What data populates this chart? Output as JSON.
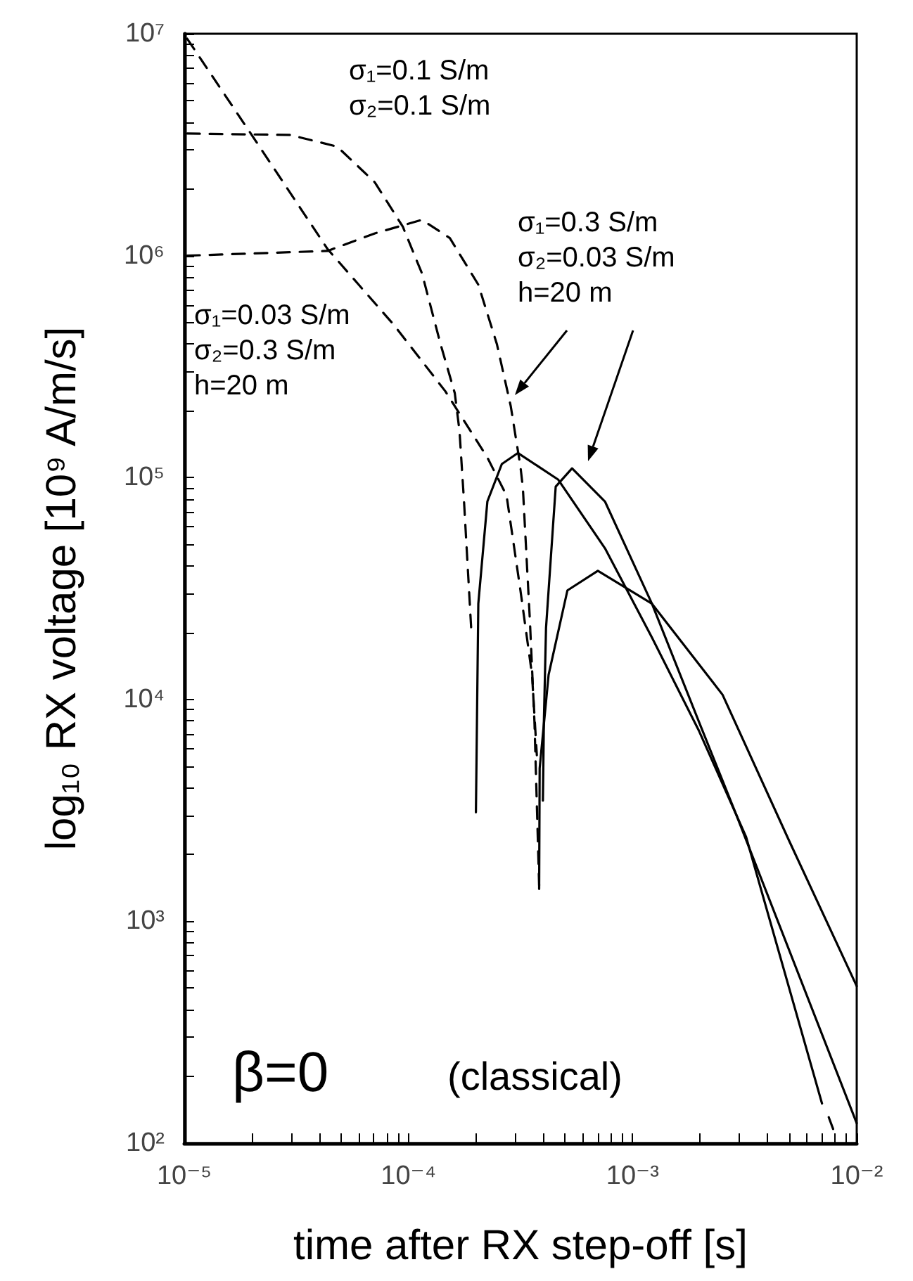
{
  "chart_data": {
    "type": "line",
    "xlabel": "time after RX step-off [s]",
    "ylabel": "log₁₀ RX voltage [10⁹ A/m/s]",
    "log": "xy",
    "grid": false,
    "marker": "none",
    "xlim": [
      1e-05,
      0.01
    ],
    "ylim": [
      100,
      10000000.0
    ],
    "xticks": [
      {
        "value": 1e-05,
        "label": "10⁻⁵"
      },
      {
        "value": 2e-05,
        "label": null
      },
      {
        "value": 3e-05,
        "label": null
      },
      {
        "value": 4e-05,
        "label": null
      },
      {
        "value": 5e-05,
        "label": null
      },
      {
        "value": 6e-05,
        "label": null
      },
      {
        "value": 7e-05,
        "label": null
      },
      {
        "value": 8e-05,
        "label": null
      },
      {
        "value": 9e-05,
        "label": null
      },
      {
        "value": 0.0001,
        "label": "10⁻⁴"
      },
      {
        "value": 0.0002,
        "label": null
      },
      {
        "value": 0.0003,
        "label": null
      },
      {
        "value": 0.0004,
        "label": null
      },
      {
        "value": 0.0005,
        "label": null
      },
      {
        "value": 0.0006,
        "label": null
      },
      {
        "value": 0.0007,
        "label": null
      },
      {
        "value": 0.0008,
        "label": null
      },
      {
        "value": 0.0009,
        "label": null
      },
      {
        "value": 0.001,
        "label": "10⁻³"
      },
      {
        "value": 0.002,
        "label": null
      },
      {
        "value": 0.003,
        "label": null
      },
      {
        "value": 0.004,
        "label": null
      },
      {
        "value": 0.005,
        "label": null
      },
      {
        "value": 0.006,
        "label": null
      },
      {
        "value": 0.007,
        "label": null
      },
      {
        "value": 0.008,
        "label": null
      },
      {
        "value": 0.009,
        "label": null
      },
      {
        "value": 0.01,
        "label": "10⁻²"
      }
    ],
    "yticks": [
      {
        "value": 100,
        "label": "10²"
      },
      {
        "value": 200,
        "label": null
      },
      {
        "value": 300,
        "label": null
      },
      {
        "value": 400,
        "label": null
      },
      {
        "value": 500,
        "label": null
      },
      {
        "value": 600,
        "label": null
      },
      {
        "value": 700,
        "label": null
      },
      {
        "value": 800,
        "label": null
      },
      {
        "value": 900,
        "label": null
      },
      {
        "value": 1000,
        "label": "10³"
      },
      {
        "value": 2000,
        "label": null
      },
      {
        "value": 3000,
        "label": null
      },
      {
        "value": 4000,
        "label": null
      },
      {
        "value": 5000,
        "label": null
      },
      {
        "value": 6000,
        "label": null
      },
      {
        "value": 7000,
        "label": null
      },
      {
        "value": 8000,
        "label": null
      },
      {
        "value": 9000,
        "label": null
      },
      {
        "value": 10000,
        "label": "10⁴"
      },
      {
        "value": 20000,
        "label": null
      },
      {
        "value": 30000,
        "label": null
      },
      {
        "value": 40000,
        "label": null
      },
      {
        "value": 50000,
        "label": null
      },
      {
        "value": 60000,
        "label": null
      },
      {
        "value": 70000,
        "label": null
      },
      {
        "value": 80000,
        "label": null
      },
      {
        "value": 90000,
        "label": null
      },
      {
        "value": 100000,
        "label": "10⁵"
      },
      {
        "value": 200000,
        "label": null
      },
      {
        "value": 300000,
        "label": null
      },
      {
        "value": 400000,
        "label": null
      },
      {
        "value": 500000,
        "label": null
      },
      {
        "value": 600000,
        "label": null
      },
      {
        "value": 700000,
        "label": null
      },
      {
        "value": 800000,
        "label": null
      },
      {
        "value": 900000,
        "label": null
      },
      {
        "value": 1000000,
        "label": "10⁶"
      },
      {
        "value": 2000000,
        "label": null
      },
      {
        "value": 3000000,
        "label": null
      },
      {
        "value": 4000000,
        "label": null
      },
      {
        "value": 5000000,
        "label": null
      },
      {
        "value": 6000000,
        "label": null
      },
      {
        "value": 7000000,
        "label": null
      },
      {
        "value": 8000000,
        "label": null
      },
      {
        "value": 9000000,
        "label": null
      },
      {
        "value": 10000000,
        "label": "10⁷"
      }
    ],
    "series": [
      {
        "color": "#000000",
        "line_style": "dashed",
        "x": [
          1.03e-05,
          2.01e-05,
          4.36e-05,
          8.57e-05,
          0.000146,
          0.000225,
          0.000274,
          0.000316,
          0.000356,
          0.000374
        ],
        "values": [
          9500000.0,
          3470000.0,
          1070000.0,
          490000.0,
          245000.0,
          123000.0,
          83000.0,
          31000.0,
          12900.0,
          5600.0
        ]
      },
      {
        "color": "#000000",
        "line_style": "dashed",
        "x": [
          1.03e-05,
          2.96e-05,
          4.81e-05,
          7.08e-05,
          9.44e-05,
          0.000115,
          0.000139,
          0.000161,
          0.000169,
          0.000177,
          0.000191
        ],
        "values": [
          3550000.0,
          3500000.0,
          3100000.0,
          2140000.0,
          1350000.0,
          830000.0,
          400000.0,
          240000.0,
          162000.0,
          78000.0,
          20000.0
        ]
      },
      {
        "color": "#000000",
        "line_style": "dashed",
        "x": [
          1.03e-05,
          4.36e-05,
          7.08e-05,
          0.000115,
          0.000153,
          0.000205,
          0.000248,
          0.000286,
          0.000316,
          0.000324,
          0.000348,
          0.000365,
          0.000383
        ],
        "values": [
          1000000.0,
          1050000.0,
          1260000.0,
          1450000.0,
          1200000.0,
          740000.0,
          400000.0,
          210000.0,
          112000.0,
          90000.0,
          23000.0,
          7900.0,
          1450.0
        ]
      },
      {
        "color": "#000000",
        "line_style": "solid",
        "x": [
          0.0002,
          0.000205,
          0.000225,
          0.000261,
          0.000308,
          0.000465,
          0.000753,
          0.00122,
          0.00198,
          0.00321,
          0.007
        ],
        "values": [
          3100.0,
          27000.0,
          78000.0,
          115000.0,
          129000.0,
          98000.0,
          48000.0,
          19000.0,
          7200.0,
          2400.0,
          151
        ]
      },
      {
        "color": "#000000",
        "line_style": "solid",
        "x": [
          0.000398,
          0.000402,
          0.000411,
          0.000454,
          0.000537,
          0.000753,
          0.00122,
          0.00198,
          0.00291,
          0.01
        ],
        "values": [
          3500.0,
          7900.0,
          21000.0,
          91000.0,
          110000.0,
          78000.0,
          27000.0,
          7900.0,
          3000.0,
          123
        ]
      },
      {
        "color": "#000000",
        "line_style": "solid",
        "x": [
          0.000383,
          0.000385,
          0.000422,
          0.000512,
          0.0007,
          0.00122,
          0.00252,
          0.005,
          0.01
        ],
        "values": [
          1400.0,
          4900.0,
          12900.0,
          31000.0,
          38000.0,
          27000.0,
          10500.0,
          2300.0,
          510
        ]
      },
      {
        "color": "#000000",
        "line_style": "dashed",
        "x": [
          0.0075,
          0.008
        ],
        "values": [
          131,
          110
        ]
      }
    ],
    "annotations": [
      "σ₁=0.1 S/m\nσ₂=0.1 S/m",
      "σ₁=0.3 S/m\nσ₂=0.03 S/m\nh=20 m",
      "σ₁=0.03 S/m\nσ₂=0.3 S/m\nh=20 m",
      "β=0",
      "(classical)"
    ]
  }
}
